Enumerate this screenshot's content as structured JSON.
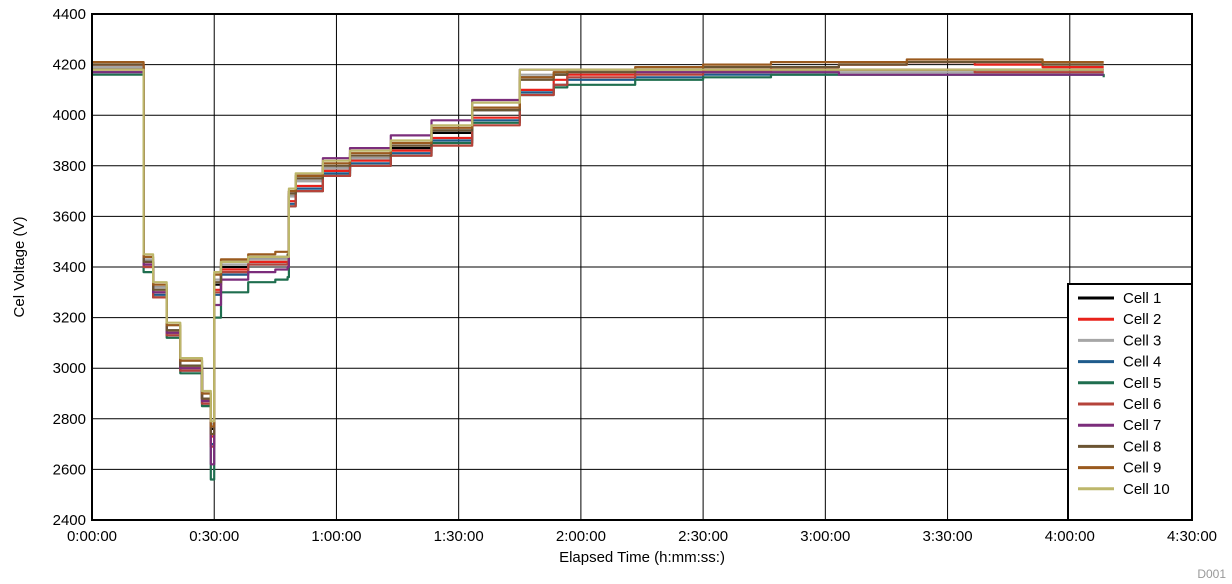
{
  "chart_data": {
    "type": "line",
    "xlabel": "Elapsed Time (h:mm:ss:)",
    "ylabel": "Cel Voltage (V)",
    "xlim": [
      0,
      16200
    ],
    "ylim": [
      2400,
      4400
    ],
    "x_ticks": [
      0,
      1800,
      3600,
      5400,
      7200,
      9000,
      10800,
      12600,
      14400,
      16200
    ],
    "x_tick_labels": [
      "0:00:00",
      "0:30:00",
      "1:00:00",
      "1:30:00",
      "2:00:00",
      "2:30:00",
      "3:00:00",
      "3:30:00",
      "4:00:00",
      "4:30:00"
    ],
    "y_ticks": [
      2400,
      2600,
      2800,
      3000,
      3200,
      3400,
      3600,
      3800,
      4000,
      4200,
      4400
    ],
    "y_tick_labels": [
      "2400",
      "2600",
      "2800",
      "3000",
      "3200",
      "3400",
      "3600",
      "3800",
      "4000",
      "4200",
      "4400"
    ],
    "grid": true,
    "legend_position": "bottom-right",
    "figure_id": "D001",
    "series": [
      {
        "name": "Cell 1",
        "color": "#000000",
        "x": [
          0,
          700,
          760,
          900,
          1100,
          1300,
          1620,
          1750,
          1800,
          1900,
          2300,
          2700,
          2880,
          2900,
          3000,
          3400,
          3800,
          4400,
          5000,
          5600,
          6300,
          6800,
          7000,
          8000,
          9000,
          10000,
          11000,
          12000,
          13000,
          14000,
          14900
        ],
        "y": [
          4190,
          4190,
          3420,
          3320,
          3150,
          3010,
          2880,
          2760,
          3330,
          3400,
          3430,
          3430,
          3430,
          3680,
          3740,
          3790,
          3830,
          3870,
          3930,
          4020,
          4150,
          4160,
          4170,
          4170,
          4180,
          4180,
          4180,
          4180,
          4180,
          4180,
          4180
        ]
      },
      {
        "name": "Cell 2",
        "color": "#e8221b",
        "x": [
          0,
          700,
          760,
          900,
          1100,
          1300,
          1620,
          1750,
          1800,
          1900,
          2300,
          2700,
          2880,
          2900,
          3000,
          3400,
          3800,
          4400,
          5000,
          5600,
          6300,
          6800,
          7000,
          8000,
          9000,
          10000,
          11000,
          12000,
          13000,
          14000,
          14900
        ],
        "y": [
          4200,
          4200,
          3410,
          3300,
          3140,
          3000,
          2880,
          2730,
          3310,
          3390,
          3420,
          3420,
          3420,
          3660,
          3720,
          3780,
          3820,
          3860,
          3910,
          3990,
          4100,
          4140,
          4160,
          4170,
          4180,
          4190,
          4200,
          4210,
          4200,
          4190,
          4190
        ]
      },
      {
        "name": "Cell 3",
        "color": "#a6a6a6",
        "x": [
          0,
          700,
          760,
          900,
          1100,
          1300,
          1620,
          1750,
          1800,
          1900,
          2300,
          2700,
          2880,
          2900,
          3000,
          3400,
          3800,
          4400,
          5000,
          5600,
          6300,
          6800,
          7000,
          8000,
          9000,
          10000,
          11000,
          12000,
          13000,
          14000,
          14900
        ],
        "y": [
          4190,
          4190,
          3430,
          3320,
          3170,
          3030,
          2900,
          2780,
          3350,
          3410,
          3430,
          3430,
          3430,
          3680,
          3740,
          3790,
          3830,
          3880,
          3940,
          4030,
          4160,
          4170,
          4170,
          4170,
          4170,
          4170,
          4170,
          4170,
          4170,
          4170,
          4170
        ]
      },
      {
        "name": "Cell 4",
        "color": "#1f5b8c",
        "x": [
          0,
          700,
          760,
          900,
          1100,
          1300,
          1620,
          1750,
          1800,
          1900,
          2300,
          2700,
          2880,
          2900,
          3000,
          3400,
          3800,
          4400,
          5000,
          5600,
          6300,
          6800,
          7000,
          8000,
          9000,
          10000,
          11000,
          12000,
          13000,
          14000,
          14900
        ],
        "y": [
          4170,
          4170,
          3400,
          3290,
          3130,
          2990,
          2860,
          2700,
          3290,
          3370,
          3410,
          3410,
          3410,
          3650,
          3710,
          3770,
          3810,
          3850,
          3900,
          3980,
          4090,
          4120,
          4140,
          4150,
          4160,
          4160,
          4160,
          4160,
          4160,
          4160,
          4160
        ]
      },
      {
        "name": "Cell 5",
        "color": "#1f6e4f",
        "x": [
          0,
          700,
          760,
          900,
          1100,
          1300,
          1620,
          1750,
          1800,
          1900,
          2300,
          2700,
          2880,
          2900,
          3000,
          3400,
          3800,
          4400,
          5000,
          5600,
          6300,
          6800,
          7000,
          8000,
          9000,
          10000,
          11000,
          12000,
          13000,
          14000,
          14900
        ],
        "y": [
          4160,
          4160,
          3380,
          3280,
          3120,
          2980,
          2850,
          2560,
          3200,
          3300,
          3340,
          3350,
          3360,
          3640,
          3700,
          3760,
          3800,
          3840,
          3890,
          3970,
          4080,
          4110,
          4120,
          4140,
          4150,
          4160,
          4160,
          4160,
          4160,
          4160,
          4150
        ]
      },
      {
        "name": "Cell 6",
        "color": "#b5433a",
        "x": [
          0,
          700,
          760,
          900,
          1100,
          1300,
          1620,
          1750,
          1800,
          1900,
          2300,
          2700,
          2880,
          2900,
          3000,
          3400,
          3800,
          4400,
          5000,
          5600,
          6300,
          6800,
          7000,
          8000,
          9000,
          10000,
          11000,
          12000,
          13000,
          14000,
          14900
        ],
        "y": [
          4180,
          4180,
          3400,
          3280,
          3130,
          2990,
          2860,
          2690,
          3300,
          3380,
          3410,
          3410,
          3420,
          3640,
          3700,
          3760,
          3800,
          3840,
          3880,
          3960,
          4080,
          4120,
          4150,
          4160,
          4170,
          4180,
          4180,
          4180,
          4170,
          4170,
          4170
        ]
      },
      {
        "name": "Cell 7",
        "color": "#7b2d7b",
        "x": [
          0,
          700,
          760,
          900,
          1100,
          1300,
          1620,
          1750,
          1800,
          1900,
          2300,
          2700,
          2880,
          2900,
          3000,
          3400,
          3800,
          4400,
          5000,
          5600,
          6300,
          6800,
          7000,
          8000,
          9000,
          10000,
          11000,
          12000,
          13000,
          14000,
          14900
        ],
        "y": [
          4170,
          4170,
          3410,
          3300,
          3140,
          3000,
          2870,
          2620,
          3250,
          3350,
          3380,
          3390,
          3400,
          3700,
          3760,
          3830,
          3870,
          3920,
          3980,
          4060,
          4180,
          4180,
          4180,
          4170,
          4170,
          4170,
          4160,
          4160,
          4160,
          4160,
          4160
        ]
      },
      {
        "name": "Cell 8",
        "color": "#6b5433",
        "x": [
          0,
          700,
          760,
          900,
          1100,
          1300,
          1620,
          1750,
          1800,
          1900,
          2300,
          2700,
          2880,
          2900,
          3000,
          3400,
          3800,
          4400,
          5000,
          5600,
          6300,
          6800,
          7000,
          8000,
          9000,
          10000,
          11000,
          12000,
          13000,
          14000,
          14900
        ],
        "y": [
          4200,
          4200,
          3420,
          3310,
          3150,
          3010,
          2880,
          2740,
          3340,
          3420,
          3440,
          3440,
          3450,
          3690,
          3750,
          3800,
          3840,
          3880,
          3940,
          4020,
          4140,
          4160,
          4170,
          4180,
          4190,
          4190,
          4200,
          4210,
          4210,
          4200,
          4200
        ]
      },
      {
        "name": "Cell 9",
        "color": "#9a5a1e",
        "x": [
          0,
          700,
          760,
          900,
          1100,
          1300,
          1620,
          1750,
          1800,
          1900,
          2300,
          2700,
          2880,
          2900,
          3000,
          3400,
          3800,
          4400,
          5000,
          5600,
          6300,
          6800,
          7000,
          8000,
          9000,
          10000,
          11000,
          12000,
          13000,
          14000,
          14900
        ],
        "y": [
          4210,
          4210,
          3440,
          3330,
          3170,
          3030,
          2900,
          2770,
          3370,
          3430,
          3450,
          3460,
          3460,
          3700,
          3760,
          3810,
          3850,
          3890,
          3950,
          4030,
          4150,
          4170,
          4180,
          4190,
          4200,
          4210,
          4210,
          4220,
          4220,
          4210,
          4210
        ]
      },
      {
        "name": "Cell 10",
        "color": "#bdb76b",
        "x": [
          0,
          700,
          760,
          900,
          1100,
          1300,
          1620,
          1750,
          1800,
          1900,
          2300,
          2700,
          2880,
          2900,
          3000,
          3400,
          3800,
          4400,
          5000,
          5600,
          6300,
          6800,
          7000,
          8000,
          9000,
          10000,
          11000,
          12000,
          13000,
          14000,
          14900
        ],
        "y": [
          4180,
          4180,
          3450,
          3340,
          3180,
          3040,
          2910,
          2790,
          3380,
          3420,
          3440,
          3440,
          3440,
          3710,
          3770,
          3820,
          3860,
          3900,
          3960,
          4050,
          4180,
          4180,
          4180,
          4180,
          4180,
          4180,
          4180,
          4180,
          4180,
          4180,
          4180
        ]
      }
    ]
  }
}
